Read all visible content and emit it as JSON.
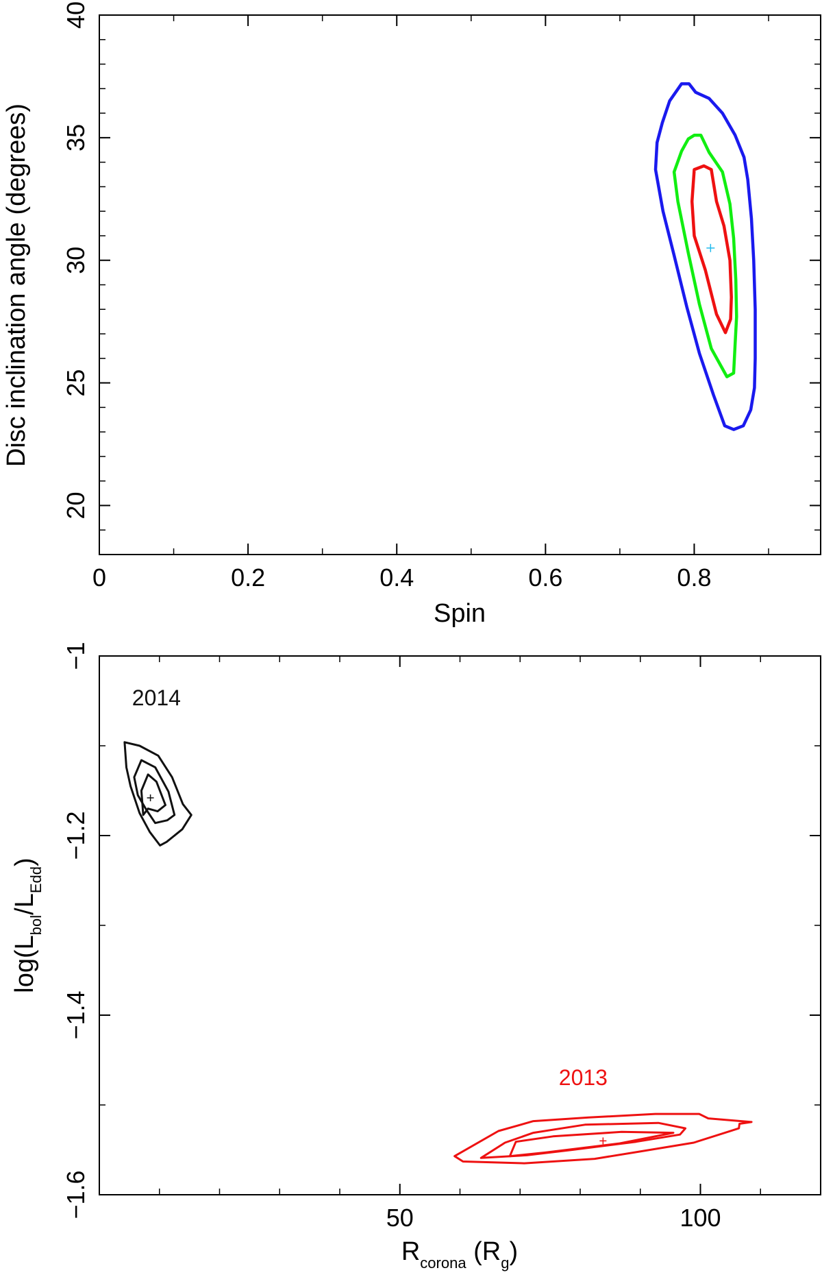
{
  "chart_data": [
    {
      "type": "contour",
      "title": "",
      "xlabel": "Spin",
      "ylabel": "Disc inclination angle (degrees)",
      "xlim": [
        0,
        0.97
      ],
      "ylim": [
        18,
        40
      ],
      "xticks": [
        0,
        0.2,
        0.4,
        0.6,
        0.8
      ],
      "xtick_labels": [
        "0",
        "0.2",
        "0.4",
        "0.6",
        "0.8"
      ],
      "xminor_step": 0.1,
      "yticks": [
        20,
        25,
        30,
        35,
        40
      ],
      "ytick_labels": [
        "20",
        "25",
        "30",
        "35",
        "40"
      ],
      "yminor_step": 1,
      "best_fit": {
        "x": 0.822,
        "y": 30.5,
        "color": "#22bbee"
      },
      "series": [
        {
          "name": "outer contour",
          "color": "#1a1aee",
          "points": [
            [
              0.783,
              37.2
            ],
            [
              0.793,
              37.2
            ],
            [
              0.802,
              36.85
            ],
            [
              0.82,
              36.6
            ],
            [
              0.838,
              36.0
            ],
            [
              0.855,
              35.1
            ],
            [
              0.867,
              34.2
            ],
            [
              0.872,
              33.3
            ],
            [
              0.877,
              31.7
            ],
            [
              0.88,
              30.0
            ],
            [
              0.882,
              28.0
            ],
            [
              0.882,
              26.0
            ],
            [
              0.881,
              24.8
            ],
            [
              0.876,
              23.9
            ],
            [
              0.866,
              23.25
            ],
            [
              0.853,
              23.1
            ],
            [
              0.841,
              23.25
            ],
            [
              0.826,
              24.5
            ],
            [
              0.807,
              26.2
            ],
            [
              0.79,
              28.1
            ],
            [
              0.773,
              30.2
            ],
            [
              0.758,
              32.0
            ],
            [
              0.748,
              33.7
            ],
            [
              0.75,
              34.8
            ],
            [
              0.757,
              35.6
            ],
            [
              0.767,
              36.5
            ],
            [
              0.783,
              37.2
            ]
          ]
        },
        {
          "name": "middle contour",
          "color": "#11ee11",
          "points": [
            [
              0.792,
              34.95
            ],
            [
              0.8,
              35.1
            ],
            [
              0.809,
              35.1
            ],
            [
              0.82,
              34.4
            ],
            [
              0.838,
              33.6
            ],
            [
              0.848,
              32.3
            ],
            [
              0.853,
              30.9
            ],
            [
              0.856,
              29.2
            ],
            [
              0.857,
              27.7
            ],
            [
              0.855,
              26.6
            ],
            [
              0.853,
              25.4
            ],
            [
              0.844,
              25.25
            ],
            [
              0.823,
              26.4
            ],
            [
              0.807,
              28.2
            ],
            [
              0.792,
              30.3
            ],
            [
              0.778,
              32.4
            ],
            [
              0.773,
              33.6
            ],
            [
              0.783,
              34.45
            ],
            [
              0.792,
              34.95
            ]
          ]
        },
        {
          "name": "inner contour",
          "color": "#ee1111",
          "points": [
            [
              0.8,
              33.7
            ],
            [
              0.813,
              33.85
            ],
            [
              0.823,
              33.7
            ],
            [
              0.83,
              32.4
            ],
            [
              0.84,
              31.4
            ],
            [
              0.848,
              30.0
            ],
            [
              0.85,
              28.5
            ],
            [
              0.849,
              27.6
            ],
            [
              0.842,
              27.05
            ],
            [
              0.83,
              27.8
            ],
            [
              0.815,
              29.6
            ],
            [
              0.8,
              31.0
            ],
            [
              0.797,
              32.4
            ],
            [
              0.8,
              33.7
            ]
          ]
        }
      ]
    },
    {
      "type": "contour",
      "title": "",
      "xlabel": "R",
      "xlabel_sub": "corona",
      "xlabel_tail": " (R",
      "xlabel_tail_sub": "g",
      "xlabel_end": ")",
      "ylabel": "log(L",
      "ylabel_sub1": "bol",
      "ylabel_mid": "/L",
      "ylabel_sub2": "Edd",
      "ylabel_end": ")",
      "xlim": [
        0,
        120
      ],
      "ylim": [
        -1.6,
        -1.0
      ],
      "xticks": [
        50,
        100
      ],
      "xtick_labels": [
        "50",
        "100"
      ],
      "xminor_step": 10,
      "yticks": [
        -1.6,
        -1.4,
        -1.2,
        -1.0
      ],
      "ytick_labels": [
        "−1.6",
        "−1.4",
        "−1.2",
        "−1"
      ],
      "yminor_step": 0.1,
      "groups": [
        {
          "label": "2014",
          "color": "#111111",
          "label_pos": [
            9.5,
            -1.055
          ],
          "best_fit": {
            "x": 8.5,
            "y": -1.158
          },
          "contours": [
            [
              [
                4.2,
                -1.096
              ],
              [
                6.7,
                -1.1
              ],
              [
                9.8,
                -1.111
              ],
              [
                12.1,
                -1.135
              ],
              [
                13.9,
                -1.165
              ],
              [
                15.3,
                -1.177
              ],
              [
                13.8,
                -1.193
              ],
              [
                11.2,
                -1.207
              ],
              [
                10.1,
                -1.211
              ],
              [
                8.4,
                -1.196
              ],
              [
                6.7,
                -1.175
              ],
              [
                5.2,
                -1.145
              ],
              [
                4.5,
                -1.124
              ],
              [
                4.2,
                -1.096
              ]
            ],
            [
              [
                7.0,
                -1.116
              ],
              [
                9.3,
                -1.124
              ],
              [
                11.5,
                -1.151
              ],
              [
                12.5,
                -1.177
              ],
              [
                11.3,
                -1.183
              ],
              [
                9.3,
                -1.186
              ],
              [
                7.8,
                -1.171
              ],
              [
                6.4,
                -1.155
              ],
              [
                5.8,
                -1.135
              ],
              [
                7.0,
                -1.116
              ]
            ],
            [
              [
                8.1,
                -1.132
              ],
              [
                9.5,
                -1.14
              ],
              [
                11.0,
                -1.166
              ],
              [
                9.7,
                -1.173
              ],
              [
                8.1,
                -1.17
              ],
              [
                7.3,
                -1.177
              ],
              [
                7.0,
                -1.15
              ],
              [
                8.1,
                -1.132
              ]
            ]
          ]
        },
        {
          "label": "2013",
          "color": "#ee1111",
          "label_pos": [
            80.5,
            -1.478
          ],
          "best_fit": {
            "x": 83.8,
            "y": -1.54
          },
          "contours": [
            [
              [
                59.1,
                -1.557
              ],
              [
                66.4,
                -1.529
              ],
              [
                72.2,
                -1.518
              ],
              [
                81.4,
                -1.514
              ],
              [
                92.5,
                -1.51
              ],
              [
                99.8,
                -1.51
              ],
              [
                101.3,
                -1.515
              ],
              [
                108.5,
                -1.519
              ],
              [
                106.5,
                -1.521
              ],
              [
                106.4,
                -1.526
              ],
              [
                98.9,
                -1.542
              ],
              [
                89.8,
                -1.552
              ],
              [
                82.4,
                -1.56
              ],
              [
                70.7,
                -1.565
              ],
              [
                60.5,
                -1.563
              ],
              [
                59.1,
                -1.557
              ]
            ],
            [
              [
                63.5,
                -1.559
              ],
              [
                67.5,
                -1.542
              ],
              [
                72.2,
                -1.531
              ],
              [
                80.8,
                -1.522
              ],
              [
                93.0,
                -1.52
              ],
              [
                97.5,
                -1.526
              ],
              [
                96.6,
                -1.533
              ],
              [
                89.3,
                -1.541
              ],
              [
                78.7,
                -1.55
              ],
              [
                71.1,
                -1.556
              ],
              [
                63.5,
                -1.559
              ]
            ],
            [
              [
                68.3,
                -1.557
              ],
              [
                69.3,
                -1.541
              ],
              [
                75.5,
                -1.535
              ],
              [
                86.9,
                -1.53
              ],
              [
                95.5,
                -1.531
              ],
              [
                86.4,
                -1.543
              ],
              [
                74.2,
                -1.553
              ],
              [
                68.3,
                -1.557
              ]
            ]
          ]
        }
      ]
    }
  ]
}
